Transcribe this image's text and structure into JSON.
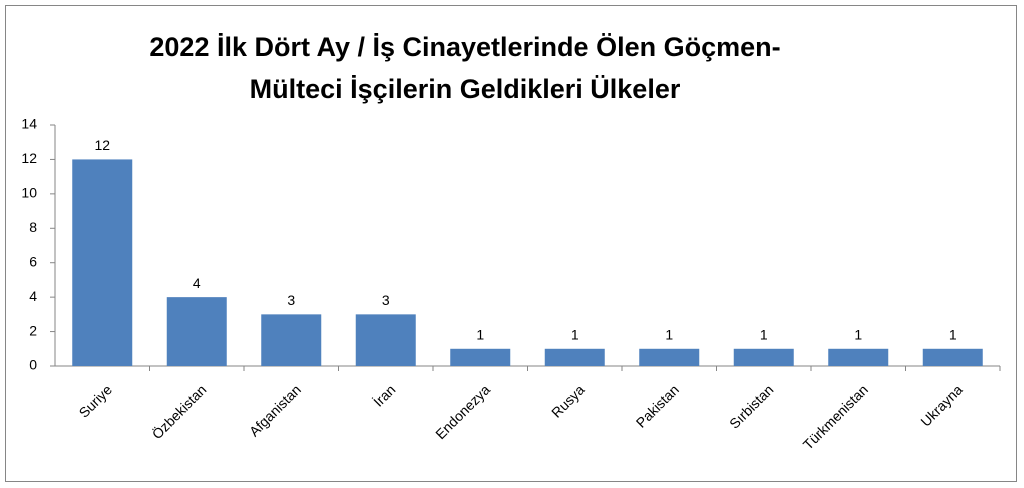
{
  "chart_data": {
    "type": "bar",
    "title": [
      "2022 İlk Dört Ay / İş Cinayetlerinde Ölen Göçmen-",
      "Mülteci İşçilerin Geldikleri Ülkeler"
    ],
    "categories": [
      "Suriye",
      "Özbekistan",
      "Afganistan",
      "İran",
      "Endonezya",
      "Rusya",
      "Pakistan",
      "Sırbistan",
      "Türkmenistan",
      "Ukrayna"
    ],
    "values": [
      12,
      4,
      3,
      3,
      1,
      1,
      1,
      1,
      1,
      1
    ],
    "color": "#4f81bd",
    "ylim": [
      0,
      14
    ],
    "yticks": [
      0,
      2,
      4,
      6,
      8,
      10,
      12,
      14
    ],
    "grid": false
  }
}
